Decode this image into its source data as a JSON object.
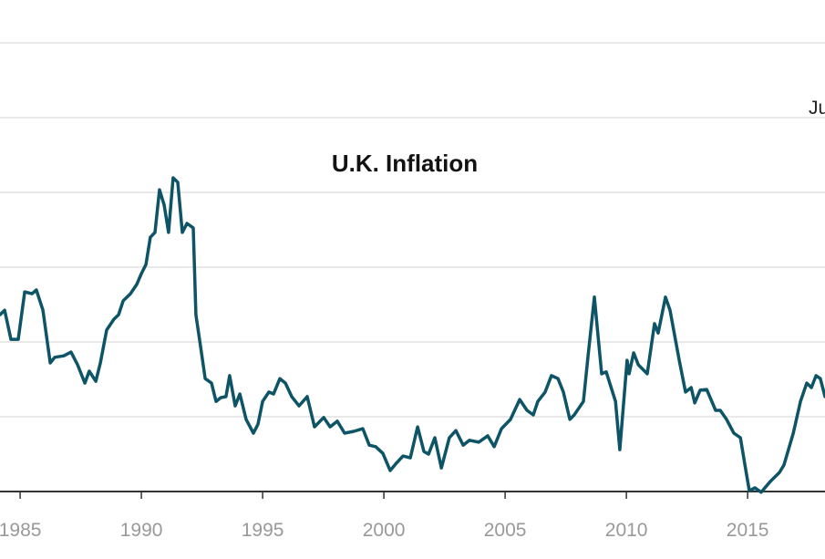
{
  "chart_data": {
    "type": "line",
    "title": "U.K. Inflation",
    "annotation": "Ju",
    "xlabel": "",
    "ylabel": "",
    "xlim": [
      1984.17,
      2018.19
    ],
    "ylim": [
      0,
      12
    ],
    "yticks": [
      0,
      2,
      4,
      6,
      8,
      10,
      12
    ],
    "grid": true,
    "line_color": "#0d5466",
    "xticks": [
      {
        "value": 1985,
        "label": "1985"
      },
      {
        "value": 1990,
        "label": "1990"
      },
      {
        "value": 1995,
        "label": "1995"
      },
      {
        "value": 2000,
        "label": "2000"
      },
      {
        "value": 2005,
        "label": "2005"
      },
      {
        "value": 2010,
        "label": "2010"
      },
      {
        "value": 2015,
        "label": "2015"
      }
    ],
    "series": [
      {
        "name": "U.K. Inflation",
        "x": [
          1984.17,
          1984.36,
          1984.62,
          1984.92,
          1985.19,
          1985.49,
          1985.67,
          1985.94,
          1986.24,
          1986.43,
          1986.8,
          1987.1,
          1987.37,
          1987.67,
          1987.85,
          1988.12,
          1988.31,
          1988.57,
          1988.87,
          1989.06,
          1989.25,
          1989.55,
          1989.81,
          1990.0,
          1990.19,
          1990.37,
          1990.56,
          1990.75,
          1990.94,
          1991.12,
          1991.31,
          1991.5,
          1991.69,
          1991.88,
          1992.14,
          1992.25,
          1992.44,
          1992.63,
          1992.89,
          1993.08,
          1993.27,
          1993.49,
          1993.64,
          1993.87,
          1994.06,
          1994.32,
          1994.62,
          1994.81,
          1995.0,
          1995.26,
          1995.45,
          1995.71,
          1995.94,
          1996.2,
          1996.5,
          1996.84,
          1997.14,
          1997.52,
          1997.78,
          1998.08,
          1998.38,
          1998.76,
          1999.13,
          1999.4,
          1999.66,
          1999.96,
          2000.26,
          2000.52,
          2000.79,
          2001.09,
          2001.39,
          2001.65,
          2001.84,
          2002.1,
          2002.37,
          2002.7,
          2002.97,
          2003.27,
          2003.53,
          2003.91,
          2004.28,
          2004.55,
          2004.85,
          2005.22,
          2005.6,
          2005.9,
          2006.16,
          2006.35,
          2006.65,
          2006.91,
          2007.18,
          2007.4,
          2007.67,
          2007.85,
          2008.23,
          2008.42,
          2008.68,
          2008.98,
          2009.17,
          2009.55,
          2009.73,
          2010.03,
          2010.11,
          2010.3,
          2010.49,
          2010.86,
          2011.16,
          2011.31,
          2011.61,
          2011.8,
          2012.18,
          2012.44,
          2012.67,
          2012.82,
          2013.04,
          2013.31,
          2013.68,
          2013.87,
          2014.13,
          2014.43,
          2014.7,
          2014.92,
          2015.07,
          2015.3,
          2015.56,
          2015.94,
          2016.31,
          2016.5,
          2016.88,
          2017.18,
          2017.44,
          2017.63,
          2017.82,
          2018.0,
          2018.19
        ],
        "values": [
          4.73,
          4.85,
          4.07,
          4.07,
          5.34,
          5.29,
          5.39,
          4.85,
          3.44,
          3.59,
          3.63,
          3.73,
          3.39,
          2.9,
          3.22,
          2.95,
          3.44,
          4.32,
          4.61,
          4.73,
          5.1,
          5.29,
          5.54,
          5.83,
          6.07,
          6.8,
          6.93,
          8.07,
          7.66,
          6.93,
          8.39,
          8.27,
          6.93,
          7.17,
          7.05,
          4.73,
          3.88,
          3.02,
          2.9,
          2.41,
          2.51,
          2.54,
          3.1,
          2.29,
          2.61,
          1.93,
          1.56,
          1.8,
          2.41,
          2.66,
          2.61,
          3.02,
          2.9,
          2.54,
          2.29,
          2.54,
          1.73,
          1.98,
          1.73,
          1.88,
          1.56,
          1.61,
          1.68,
          1.24,
          1.2,
          1.02,
          0.56,
          0.76,
          0.95,
          0.9,
          1.73,
          1.07,
          1.0,
          1.44,
          0.63,
          1.44,
          1.63,
          1.24,
          1.37,
          1.32,
          1.49,
          1.2,
          1.68,
          1.93,
          2.46,
          2.17,
          2.05,
          2.41,
          2.66,
          3.1,
          3.02,
          2.66,
          1.93,
          2.05,
          2.41,
          3.63,
          5.2,
          3.15,
          3.2,
          2.41,
          1.12,
          3.51,
          3.15,
          3.71,
          3.39,
          3.15,
          4.49,
          4.24,
          5.2,
          4.85,
          3.51,
          2.66,
          2.78,
          2.37,
          2.71,
          2.73,
          2.17,
          2.17,
          1.93,
          1.56,
          1.44,
          0.59,
          0.02,
          0.1,
          -0.02,
          0.27,
          0.51,
          0.71,
          1.56,
          2.41,
          2.9,
          2.78,
          3.1,
          3.02,
          2.54
        ]
      }
    ]
  }
}
